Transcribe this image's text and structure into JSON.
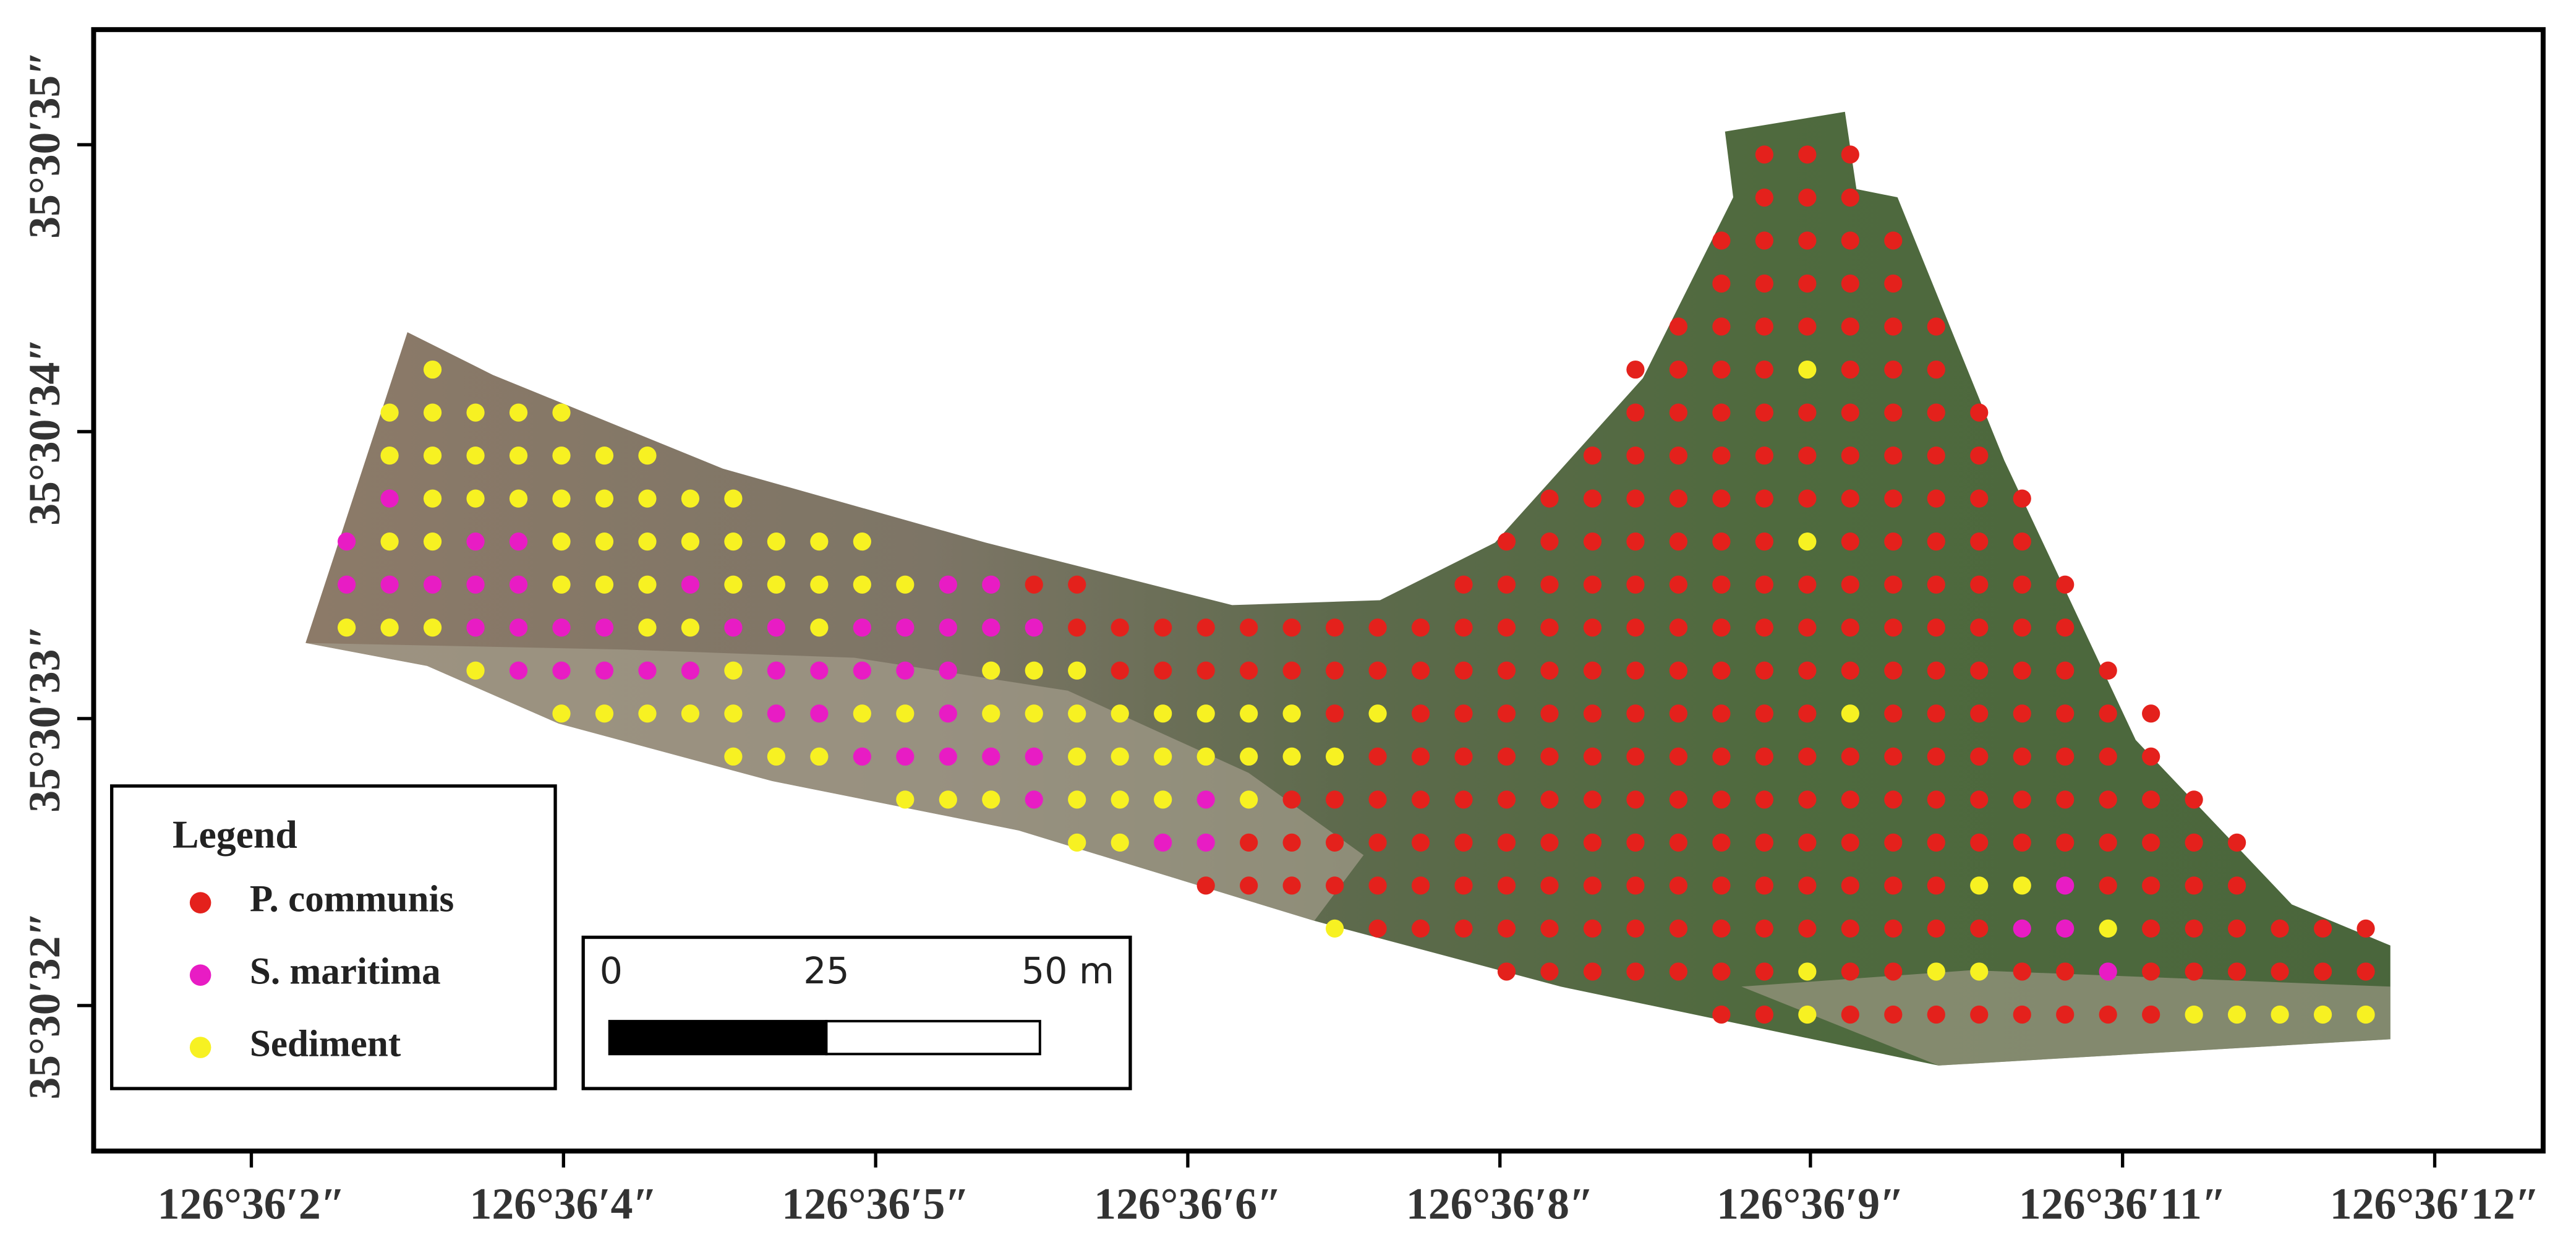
{
  "map": {
    "x_ticks": [
      "126°36′2″",
      "126°36′4″",
      "126°36′5″",
      "126°36′6″",
      "126°36′8″",
      "126°36′9″",
      "126°36′11″",
      "126°36′12″"
    ],
    "y_ticks": [
      "35°30′35″",
      "35°30′34″",
      "35°30′33″",
      "35°30′32″"
    ],
    "legend": {
      "title": "Legend",
      "items": [
        {
          "label": "P. communis",
          "color": "#e4211c"
        },
        {
          "label": "S. maritima",
          "color": "#e81cc4"
        },
        {
          "label": "Sediment",
          "color": "#f7f122"
        }
      ]
    },
    "scale_bar": {
      "labels": [
        "0",
        "25",
        "50 m"
      ]
    },
    "points": {
      "rows": [
        {
          "segments": [
            {
              "start": 33,
              "classes": "000"
            }
          ]
        },
        {
          "segments": [
            {
              "start": 33,
              "classes": "000"
            }
          ]
        },
        {
          "segments": [
            {
              "start": 32,
              "classes": "00000"
            }
          ]
        },
        {
          "segments": [
            {
              "start": 32,
              "classes": "00000"
            }
          ]
        },
        {
          "segments": [
            {
              "start": 31,
              "classes": "0000000"
            }
          ]
        },
        {
          "segments": [
            {
              "start": 2,
              "classes": "2"
            },
            {
              "start": 30,
              "classes": "00002000"
            }
          ]
        },
        {
          "segments": [
            {
              "start": 1,
              "classes": "22222"
            },
            {
              "start": 30,
              "classes": "000000000"
            }
          ]
        },
        {
          "segments": [
            {
              "start": 1,
              "classes": "2222222"
            },
            {
              "start": 29,
              "classes": "0000000000"
            }
          ]
        },
        {
          "segments": [
            {
              "start": 1,
              "classes": "122222222"
            },
            {
              "start": 28,
              "classes": "000000000000"
            }
          ]
        },
        {
          "segments": [
            {
              "start": 0,
              "classes": "1221122222222"
            },
            {
              "start": 27,
              "classes": "0000000200000"
            }
          ]
        },
        {
          "segments": [
            {
              "start": 0,
              "classes": "111112221222221100"
            },
            {
              "start": 26,
              "classes": "000000000000000"
            }
          ]
        },
        {
          "segments": [
            {
              "start": 0,
              "classes": "22211112211211111000000000000000000000000"
            }
          ]
        },
        {
          "segments": [
            {
              "start": 3,
              "classes": "211111211111222000000000000000000000000"
            }
          ]
        },
        {
          "segments": [
            {
              "start": 5,
              "classes": "22222112212222222202000000000020000000"
            }
          ]
        },
        {
          "segments": [
            {
              "start": 9,
              "classes": "2221111122222220000000000000000000"
            }
          ]
        },
        {
          "segments": [
            {
              "start": 13,
              "classes": "2221222120000000000000000000000"
            }
          ]
        },
        {
          "segments": [
            {
              "start": 17,
              "classes": "2211000000000000000000000000"
            }
          ]
        },
        {
          "segments": [
            {
              "start": 20,
              "classes": "0000000000000000002210000"
            }
          ]
        },
        {
          "segments": [
            {
              "start": 23,
              "classes": "2000000000000000112000000"
            }
          ]
        },
        {
          "segments": [
            {
              "start": 27,
              "classes": "000000020022001000000"
            }
          ]
        },
        {
          "segments": [
            {
              "start": 32,
              "classes": "0020000000022222"
            }
          ]
        }
      ]
    }
  }
}
